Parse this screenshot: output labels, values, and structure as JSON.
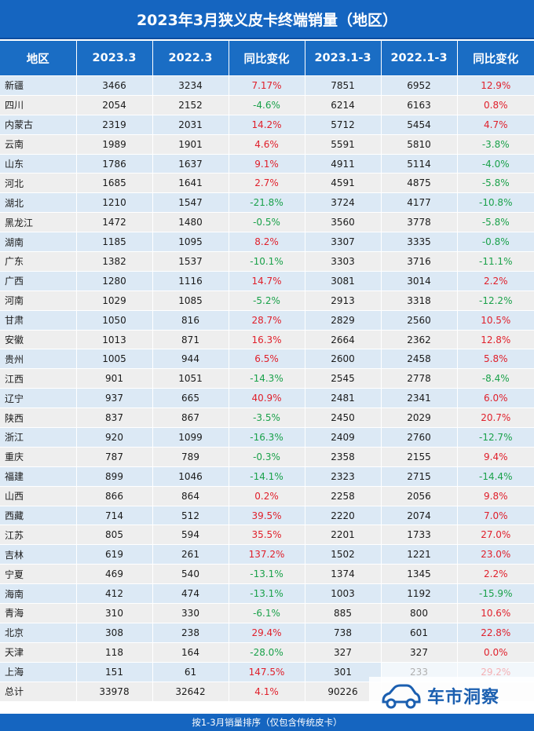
{
  "title": "2023年3月狭义皮卡终端销量（地区）",
  "headers": [
    "地区",
    "2023.3",
    "2022.3",
    "同比变化",
    "2023.1-3",
    "2022.1-3",
    "同比变化"
  ],
  "rows": [
    [
      "新疆",
      "3466",
      "3234",
      "7.17%",
      "7851",
      "6952",
      "12.9%"
    ],
    [
      "四川",
      "2054",
      "2152",
      "-4.6%",
      "6214",
      "6163",
      "0.8%"
    ],
    [
      "内蒙古",
      "2319",
      "2031",
      "14.2%",
      "5712",
      "5454",
      "4.7%"
    ],
    [
      "云南",
      "1989",
      "1901",
      "4.6%",
      "5591",
      "5810",
      "-3.8%"
    ],
    [
      "山东",
      "1786",
      "1637",
      "9.1%",
      "4911",
      "5114",
      "-4.0%"
    ],
    [
      "河北",
      "1685",
      "1641",
      "2.7%",
      "4591",
      "4875",
      "-5.8%"
    ],
    [
      "湖北",
      "1210",
      "1547",
      "-21.8%",
      "3724",
      "4177",
      "-10.8%"
    ],
    [
      "黑龙江",
      "1472",
      "1480",
      "-0.5%",
      "3560",
      "3778",
      "-5.8%"
    ],
    [
      "湖南",
      "1185",
      "1095",
      "8.2%",
      "3307",
      "3335",
      "-0.8%"
    ],
    [
      "广东",
      "1382",
      "1537",
      "-10.1%",
      "3303",
      "3716",
      "-11.1%"
    ],
    [
      "广西",
      "1280",
      "1116",
      "14.7%",
      "3081",
      "3014",
      "2.2%"
    ],
    [
      "河南",
      "1029",
      "1085",
      "-5.2%",
      "2913",
      "3318",
      "-12.2%"
    ],
    [
      "甘肃",
      "1050",
      "816",
      "28.7%",
      "2829",
      "2560",
      "10.5%"
    ],
    [
      "安徽",
      "1013",
      "871",
      "16.3%",
      "2664",
      "2362",
      "12.8%"
    ],
    [
      "贵州",
      "1005",
      "944",
      "6.5%",
      "2600",
      "2458",
      "5.8%"
    ],
    [
      "江西",
      "901",
      "1051",
      "-14.3%",
      "2545",
      "2778",
      "-8.4%"
    ],
    [
      "辽宁",
      "937",
      "665",
      "40.9%",
      "2481",
      "2341",
      "6.0%"
    ],
    [
      "陕西",
      "837",
      "867",
      "-3.5%",
      "2450",
      "2029",
      "20.7%"
    ],
    [
      "浙江",
      "920",
      "1099",
      "-16.3%",
      "2409",
      "2760",
      "-12.7%"
    ],
    [
      "重庆",
      "787",
      "789",
      "-0.3%",
      "2358",
      "2155",
      "9.4%"
    ],
    [
      "福建",
      "899",
      "1046",
      "-14.1%",
      "2323",
      "2715",
      "-14.4%"
    ],
    [
      "山西",
      "866",
      "864",
      "0.2%",
      "2258",
      "2056",
      "9.8%"
    ],
    [
      "西藏",
      "714",
      "512",
      "39.5%",
      "2220",
      "2074",
      "7.0%"
    ],
    [
      "江苏",
      "805",
      "594",
      "35.5%",
      "2201",
      "1733",
      "27.0%"
    ],
    [
      "吉林",
      "619",
      "261",
      "137.2%",
      "1502",
      "1221",
      "23.0%"
    ],
    [
      "宁夏",
      "469",
      "540",
      "-13.1%",
      "1374",
      "1345",
      "2.2%"
    ],
    [
      "海南",
      "412",
      "474",
      "-13.1%",
      "1003",
      "1192",
      "-15.9%"
    ],
    [
      "青海",
      "310",
      "330",
      "-6.1%",
      "885",
      "800",
      "10.6%"
    ],
    [
      "北京",
      "308",
      "238",
      "29.4%",
      "738",
      "601",
      "22.8%"
    ],
    [
      "天津",
      "118",
      "164",
      "-28.0%",
      "327",
      "327",
      "0.0%"
    ],
    [
      "上海",
      "151",
      "61",
      "147.5%",
      "301",
      "233",
      "29.2%"
    ]
  ],
  "total": [
    "总计",
    "33978",
    "32642",
    "4.1%",
    "90226",
    "",
    ""
  ],
  "footer": "按1-3月销量排序（仅包含传统皮卡）",
  "watermark": {
    "text": "车市洞察",
    "icon": "car-icon"
  },
  "colors": {
    "positive": "#e0202b",
    "negative": "#1aa14a",
    "header": "#1a6dc4",
    "row_even": "#dce9f5",
    "row_odd": "#eeeeee"
  }
}
